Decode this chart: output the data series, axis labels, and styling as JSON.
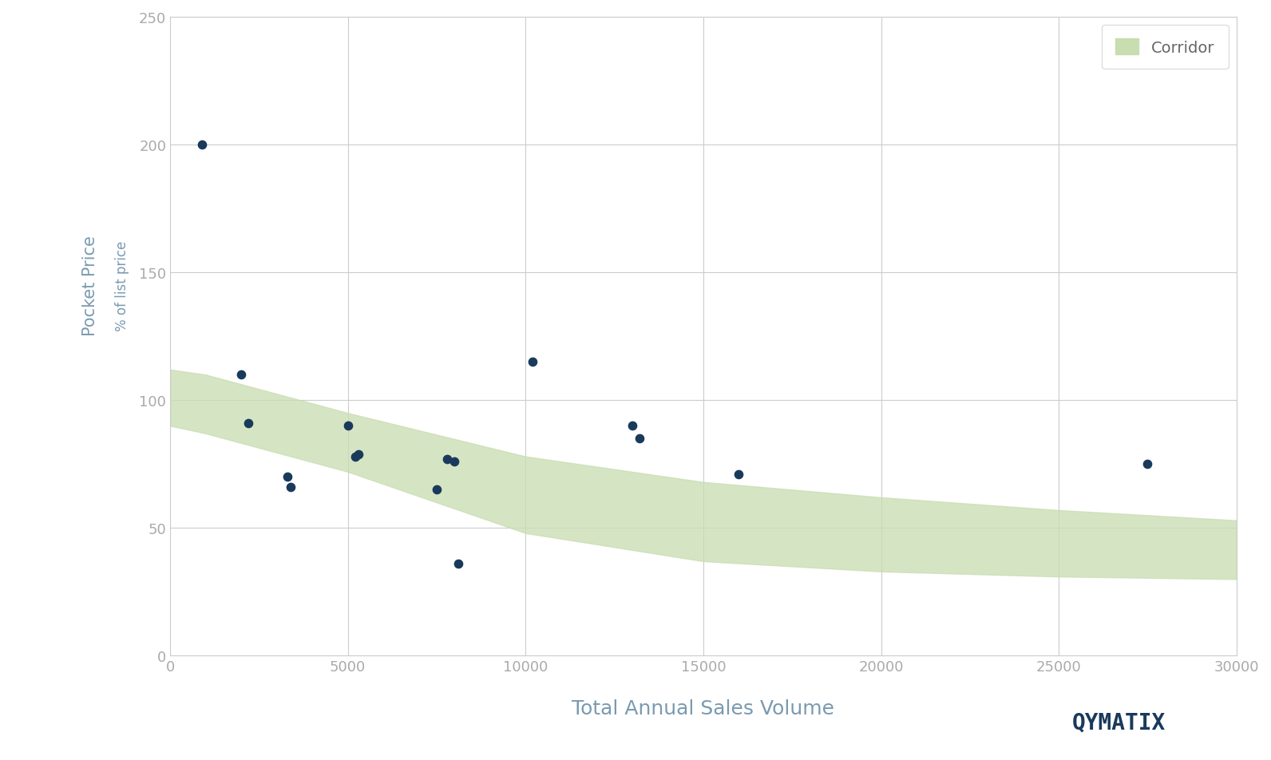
{
  "scatter_x": [
    900,
    2000,
    2200,
    3300,
    3400,
    5000,
    5200,
    5300,
    7500,
    7800,
    8000,
    8100,
    10200,
    13000,
    13200,
    16000,
    27500
  ],
  "scatter_y": [
    200,
    110,
    91,
    70,
    66,
    90,
    78,
    79,
    65,
    77,
    76,
    36,
    115,
    90,
    85,
    71,
    75
  ],
  "corridor_x": [
    0,
    1000,
    5000,
    10000,
    15000,
    20000,
    25000,
    30000
  ],
  "corridor_upper": [
    112,
    110,
    95,
    78,
    68,
    62,
    57,
    53
  ],
  "corridor_lower": [
    90,
    87,
    72,
    48,
    37,
    33,
    31,
    30
  ],
  "scatter_color": "#1a3a5c",
  "corridor_color": "#c8ddb0",
  "background_color": "#ffffff",
  "grid_color": "#cccccc",
  "axis_label_color": "#7a9ab0",
  "tick_color": "#aaaaaa",
  "ylabel_line1": "Pocket Price",
  "ylabel_line2": "% of list price",
  "xlabel": "Total Annual Sales Volume",
  "ylim": [
    0,
    250
  ],
  "xlim": [
    0,
    30000
  ],
  "yticks": [
    0,
    50,
    100,
    150,
    200,
    250
  ],
  "xticks": [
    0,
    5000,
    10000,
    15000,
    20000,
    25000,
    30000
  ],
  "legend_label": "Corridor",
  "brand_text": "QYMATIX",
  "brand_color": "#1a3a5c"
}
